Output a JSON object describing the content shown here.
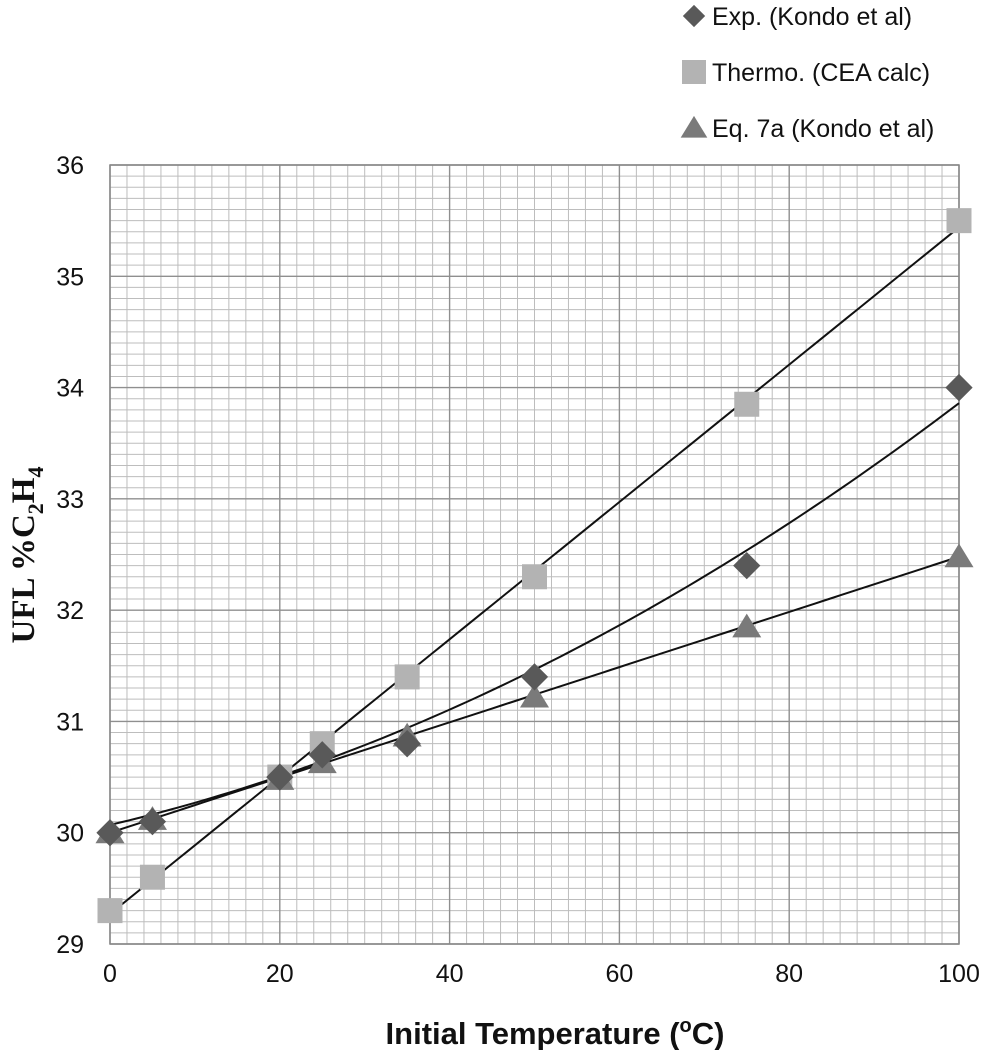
{
  "chart_data": {
    "type": "scatter",
    "title": "",
    "xlabel": "Initial Temperature (",
    "xlabel_sup": "o",
    "xlabel_end": "C)",
    "ylabel": "UFL  %C",
    "ylabel_sub1": "2",
    "ylabel_mid": "H",
    "ylabel_sub2": "4",
    "xlim": [
      0,
      100
    ],
    "ylim": [
      29,
      36
    ],
    "x_ticks": [
      "0",
      "20",
      "40",
      "60",
      "80",
      "100"
    ],
    "y_ticks": [
      "29",
      "30",
      "31",
      "32",
      "33",
      "34",
      "35",
      "36"
    ],
    "grid": true,
    "legend_position": "top-right",
    "series": [
      {
        "name": "Exp. (Kondo et al)",
        "marker": "diamond",
        "color": "#595959",
        "points": [
          [
            0,
            30.0
          ],
          [
            5,
            30.1
          ],
          [
            20,
            30.5
          ],
          [
            25,
            30.7
          ],
          [
            35,
            30.8
          ],
          [
            50,
            31.4
          ],
          [
            75,
            32.4
          ],
          [
            100,
            34.0
          ]
        ],
        "trendline": {
          "type": "polynomial",
          "coeffs": [
            30.07,
            0.0179,
            0.0002
          ]
        }
      },
      {
        "name": "Thermo. (CEA calc)",
        "marker": "square",
        "color": "#b3b3b3",
        "points": [
          [
            0,
            29.3
          ],
          [
            5,
            29.6
          ],
          [
            20,
            30.5
          ],
          [
            25,
            30.8
          ],
          [
            35,
            31.4
          ],
          [
            50,
            32.3
          ],
          [
            75,
            33.85
          ],
          [
            100,
            35.5
          ]
        ],
        "trendline": {
          "type": "linear",
          "coeffs": [
            29.27,
            0.0617
          ]
        }
      },
      {
        "name": "Eq. 7a (Kondo et al)",
        "marker": "triangle",
        "color": "#7a7a7a",
        "points": [
          [
            0,
            30.0
          ],
          [
            5,
            30.12
          ],
          [
            20,
            30.48
          ],
          [
            25,
            30.63
          ],
          [
            35,
            30.87
          ],
          [
            50,
            31.22
          ],
          [
            75,
            31.85
          ],
          [
            100,
            32.48
          ]
        ],
        "trendline": {
          "type": "linear",
          "coeffs": [
            30.0,
            0.0248
          ]
        }
      }
    ]
  }
}
